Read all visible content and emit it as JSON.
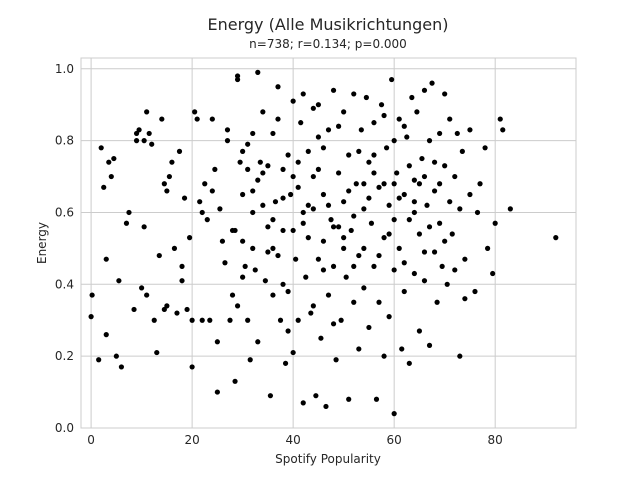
{
  "chart_data": {
    "type": "scatter",
    "title": "Energy (Alle Musikrichtungen)",
    "subtitle": "n=738; r=0.134; p=0.000",
    "xlabel": "Spotify Popularity",
    "ylabel": "Energy",
    "xlim": [
      -2,
      96
    ],
    "ylim": [
      0.0,
      1.03
    ],
    "xticks": [
      0,
      20,
      40,
      60,
      80
    ],
    "xtick_labels": [
      "0",
      "20",
      "40",
      "60",
      "80"
    ],
    "yticks": [
      0.0,
      0.2,
      0.4,
      0.6,
      0.8,
      1.0
    ],
    "ytick_labels": [
      "0.0",
      "0.2",
      "0.4",
      "0.6",
      "0.8",
      "1.0"
    ],
    "grid": true,
    "color": "#000000",
    "background": "#ffffff",
    "grid_color": "#cccccc",
    "points": [
      [
        0.0,
        0.31
      ],
      [
        0.2,
        0.37
      ],
      [
        1.5,
        0.19
      ],
      [
        2.0,
        0.78
      ],
      [
        2.5,
        0.67
      ],
      [
        3.0,
        0.47
      ],
      [
        3.0,
        0.26
      ],
      [
        3.5,
        0.74
      ],
      [
        4.0,
        0.7
      ],
      [
        4.5,
        0.75
      ],
      [
        5.0,
        0.2
      ],
      [
        5.5,
        0.41
      ],
      [
        6.0,
        0.17
      ],
      [
        7.0,
        0.57
      ],
      [
        7.5,
        0.6
      ],
      [
        8.5,
        0.33
      ],
      [
        9.0,
        0.8
      ],
      [
        9.0,
        0.82
      ],
      [
        9.5,
        0.83
      ],
      [
        10.0,
        0.39
      ],
      [
        10.5,
        0.56
      ],
      [
        10.5,
        0.8
      ],
      [
        11.0,
        0.37
      ],
      [
        11.0,
        0.88
      ],
      [
        11.5,
        0.82
      ],
      [
        12.0,
        0.79
      ],
      [
        12.5,
        0.3
      ],
      [
        13.0,
        0.21
      ],
      [
        13.5,
        0.48
      ],
      [
        14.0,
        0.86
      ],
      [
        14.5,
        0.33
      ],
      [
        14.5,
        0.68
      ],
      [
        15.0,
        0.66
      ],
      [
        15.0,
        0.34
      ],
      [
        15.5,
        0.7
      ],
      [
        16.0,
        0.74
      ],
      [
        16.5,
        0.5
      ],
      [
        17.0,
        0.32
      ],
      [
        17.5,
        0.77
      ],
      [
        18.0,
        0.45
      ],
      [
        18.0,
        0.41
      ],
      [
        18.5,
        0.64
      ],
      [
        19.0,
        0.33
      ],
      [
        19.5,
        0.53
      ],
      [
        20.0,
        0.3
      ],
      [
        20.0,
        0.17
      ],
      [
        20.5,
        0.88
      ],
      [
        21.0,
        0.86
      ],
      [
        21.5,
        0.63
      ],
      [
        22.0,
        0.3
      ],
      [
        22.0,
        0.6
      ],
      [
        22.5,
        0.68
      ],
      [
        23.0,
        0.58
      ],
      [
        23.5,
        0.3
      ],
      [
        24.0,
        0.86
      ],
      [
        24.0,
        0.66
      ],
      [
        24.5,
        0.72
      ],
      [
        25.0,
        0.24
      ],
      [
        25.0,
        0.1
      ],
      [
        25.5,
        0.61
      ],
      [
        26.0,
        0.52
      ],
      [
        26.5,
        0.46
      ],
      [
        27.0,
        0.8
      ],
      [
        27.0,
        0.83
      ],
      [
        27.5,
        0.3
      ],
      [
        28.0,
        0.37
      ],
      [
        28.5,
        0.13
      ],
      [
        28.5,
        0.55
      ],
      [
        29.0,
        0.34
      ],
      [
        29.0,
        0.98
      ],
      [
        29.0,
        0.97
      ],
      [
        29.5,
        0.74
      ],
      [
        30.0,
        0.65
      ],
      [
        30.0,
        0.52
      ],
      [
        30.5,
        0.45
      ],
      [
        31.0,
        0.79
      ],
      [
        31.0,
        0.3
      ],
      [
        31.5,
        0.19
      ],
      [
        32.0,
        0.66
      ],
      [
        32.0,
        0.5
      ],
      [
        32.5,
        0.44
      ],
      [
        33.0,
        0.99
      ],
      [
        33.0,
        0.24
      ],
      [
        33.5,
        0.74
      ],
      [
        34.0,
        0.62
      ],
      [
        34.0,
        0.88
      ],
      [
        34.5,
        0.41
      ],
      [
        35.0,
        0.56
      ],
      [
        35.0,
        0.73
      ],
      [
        35.5,
        0.09
      ],
      [
        36.0,
        0.82
      ],
      [
        36.0,
        0.37
      ],
      [
        36.5,
        0.63
      ],
      [
        37.0,
        0.95
      ],
      [
        37.0,
        0.48
      ],
      [
        37.5,
        0.3
      ],
      [
        38.0,
        0.72
      ],
      [
        38.0,
        0.55
      ],
      [
        38.5,
        0.18
      ],
      [
        39.0,
        0.76
      ],
      [
        39.0,
        0.38
      ],
      [
        39.5,
        0.65
      ],
      [
        40.0,
        0.91
      ],
      [
        40.0,
        0.21
      ],
      [
        40.5,
        0.47
      ],
      [
        41.0,
        0.67
      ],
      [
        41.0,
        0.3
      ],
      [
        41.5,
        0.85
      ],
      [
        42.0,
        0.57
      ],
      [
        42.0,
        0.07
      ],
      [
        42.5,
        0.42
      ],
      [
        43.0,
        0.77
      ],
      [
        43.0,
        0.53
      ],
      [
        43.5,
        0.32
      ],
      [
        44.0,
        0.89
      ],
      [
        44.0,
        0.61
      ],
      [
        44.5,
        0.09
      ],
      [
        45.0,
        0.47
      ],
      [
        45.0,
        0.72
      ],
      [
        45.5,
        0.25
      ],
      [
        46.0,
        0.65
      ],
      [
        46.0,
        0.52
      ],
      [
        46.5,
        0.06
      ],
      [
        47.0,
        0.83
      ],
      [
        47.0,
        0.37
      ],
      [
        47.5,
        0.58
      ],
      [
        48.0,
        0.94
      ],
      [
        48.0,
        0.45
      ],
      [
        48.5,
        0.19
      ],
      [
        49.0,
        0.71
      ],
      [
        49.0,
        0.56
      ],
      [
        49.5,
        0.3
      ],
      [
        50.0,
        0.88
      ],
      [
        50.0,
        0.63
      ],
      [
        50.5,
        0.42
      ],
      [
        51.0,
        0.76
      ],
      [
        51.0,
        0.08
      ],
      [
        51.5,
        0.55
      ],
      [
        52.0,
        0.93
      ],
      [
        52.0,
        0.35
      ],
      [
        52.5,
        0.68
      ],
      [
        53.0,
        0.22
      ],
      [
        53.0,
        0.48
      ],
      [
        53.5,
        0.83
      ],
      [
        54.0,
        0.61
      ],
      [
        54.0,
        0.39
      ],
      [
        54.5,
        0.92
      ],
      [
        55.0,
        0.74
      ],
      [
        55.0,
        0.28
      ],
      [
        55.5,
        0.57
      ],
      [
        56.0,
        0.85
      ],
      [
        56.0,
        0.45
      ],
      [
        56.5,
        0.08
      ],
      [
        57.0,
        0.67
      ],
      [
        57.0,
        0.35
      ],
      [
        57.5,
        0.9
      ],
      [
        58.0,
        0.53
      ],
      [
        58.0,
        0.2
      ],
      [
        58.5,
        0.78
      ],
      [
        59.0,
        0.62
      ],
      [
        59.0,
        0.31
      ],
      [
        59.5,
        0.97
      ],
      [
        60.0,
        0.44
      ],
      [
        60.0,
        0.04
      ],
      [
        60.5,
        0.71
      ],
      [
        61.0,
        0.86
      ],
      [
        61.0,
        0.5
      ],
      [
        61.5,
        0.22
      ],
      [
        62.0,
        0.65
      ],
      [
        62.0,
        0.38
      ],
      [
        62.5,
        0.81
      ],
      [
        63.0,
        0.58
      ],
      [
        63.0,
        0.18
      ],
      [
        63.5,
        0.92
      ],
      [
        64.0,
        0.69
      ],
      [
        64.0,
        0.43
      ],
      [
        64.5,
        0.88
      ],
      [
        65.0,
        0.54
      ],
      [
        65.0,
        0.27
      ],
      [
        65.5,
        0.75
      ],
      [
        66.0,
        0.94
      ],
      [
        66.0,
        0.41
      ],
      [
        66.5,
        0.62
      ],
      [
        67.0,
        0.8
      ],
      [
        67.0,
        0.23
      ],
      [
        67.5,
        0.96
      ],
      [
        68.0,
        0.49
      ],
      [
        68.0,
        0.66
      ],
      [
        68.5,
        0.35
      ],
      [
        69.0,
        0.82
      ],
      [
        69.0,
        0.57
      ],
      [
        69.5,
        0.45
      ],
      [
        70.0,
        0.93
      ],
      [
        70.0,
        0.73
      ],
      [
        70.5,
        0.4
      ],
      [
        71.0,
        0.63
      ],
      [
        71.0,
        0.86
      ],
      [
        71.5,
        0.54
      ],
      [
        72.0,
        0.7
      ],
      [
        72.0,
        0.44
      ],
      [
        72.5,
        0.82
      ],
      [
        73.0,
        0.61
      ],
      [
        73.0,
        0.2
      ],
      [
        73.5,
        0.77
      ],
      [
        74.0,
        0.47
      ],
      [
        74.0,
        0.36
      ],
      [
        75.0,
        0.65
      ],
      [
        75.0,
        0.83
      ],
      [
        76.0,
        0.38
      ],
      [
        76.5,
        0.6
      ],
      [
        77.0,
        0.68
      ],
      [
        78.0,
        0.78
      ],
      [
        78.5,
        0.5
      ],
      [
        79.5,
        0.43
      ],
      [
        80.0,
        0.57
      ],
      [
        81.0,
        0.86
      ],
      [
        81.5,
        0.83
      ],
      [
        83.0,
        0.61
      ],
      [
        92.0,
        0.53
      ],
      [
        28,
        0.55
      ],
      [
        30,
        0.77
      ],
      [
        31,
        0.72
      ],
      [
        32,
        0.6
      ],
      [
        33,
        0.69
      ],
      [
        34,
        0.71
      ],
      [
        35,
        0.49
      ],
      [
        36,
        0.58
      ],
      [
        37,
        0.86
      ],
      [
        38,
        0.4
      ],
      [
        39,
        0.27
      ],
      [
        40,
        0.7
      ],
      [
        41,
        0.74
      ],
      [
        42,
        0.93
      ],
      [
        43,
        0.62
      ],
      [
        44,
        0.34
      ],
      [
        45,
        0.81
      ],
      [
        46,
        0.44
      ],
      [
        47,
        0.62
      ],
      [
        48,
        0.29
      ],
      [
        49,
        0.84
      ],
      [
        50,
        0.5
      ],
      [
        51,
        0.66
      ],
      [
        52,
        0.59
      ],
      [
        53,
        0.77
      ],
      [
        54,
        0.5
      ],
      [
        55,
        0.64
      ],
      [
        56,
        0.71
      ],
      [
        57,
        0.48
      ],
      [
        58,
        0.87
      ],
      [
        59,
        0.54
      ],
      [
        60,
        0.68
      ],
      [
        61,
        0.64
      ],
      [
        62,
        0.46
      ],
      [
        63,
        0.73
      ],
      [
        64,
        0.6
      ],
      [
        65,
        0.68
      ],
      [
        66,
        0.49
      ],
      [
        67,
        0.56
      ],
      [
        68,
        0.74
      ],
      [
        69,
        0.68
      ],
      [
        70,
        0.52
      ],
      [
        30,
        0.42
      ],
      [
        36,
        0.5
      ],
      [
        42,
        0.6
      ],
      [
        48,
        0.56
      ],
      [
        54,
        0.68
      ],
      [
        60,
        0.58
      ],
      [
        66,
        0.7
      ],
      [
        32,
        0.82
      ],
      [
        44,
        0.7
      ],
      [
        56,
        0.76
      ],
      [
        62,
        0.84
      ],
      [
        45,
        0.9
      ],
      [
        58,
        0.68
      ],
      [
        50,
        0.53
      ],
      [
        40,
        0.55
      ],
      [
        64,
        0.63
      ],
      [
        52,
        0.45
      ],
      [
        46,
        0.78
      ],
      [
        60,
        0.8
      ],
      [
        38,
        0.64
      ]
    ]
  }
}
